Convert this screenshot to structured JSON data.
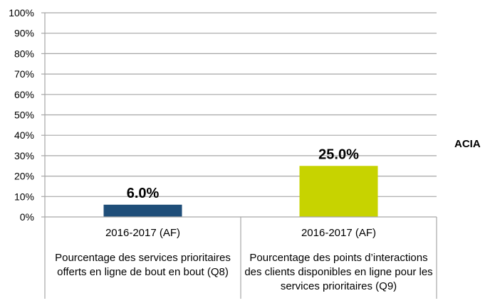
{
  "chart_data": {
    "type": "bar",
    "categories": [
      {
        "year": "2016-2017 (AF)",
        "description": [
          "Pourcentage des services prioritaires",
          "offerts en ligne de bout en bout (Q8)"
        ]
      },
      {
        "year": "2016-2017 (AF)",
        "description": [
          "Pourcentage des points d’interactions",
          "des clients disponibles en ligne pour les",
          "services prioritaires (Q9)"
        ]
      }
    ],
    "values": [
      6.0,
      25.0
    ],
    "data_labels": [
      "6.0%",
      "25.0%"
    ],
    "bar_colors": [
      "#1f4e79",
      "#c7d300"
    ],
    "ylim": [
      0,
      100
    ],
    "yticks": [
      "0%",
      "10%",
      "20%",
      "30%",
      "40%",
      "50%",
      "60%",
      "70%",
      "80%",
      "90%",
      "100%"
    ],
    "grid": true,
    "legend": {
      "label": "ACIA",
      "placement": "right"
    }
  }
}
